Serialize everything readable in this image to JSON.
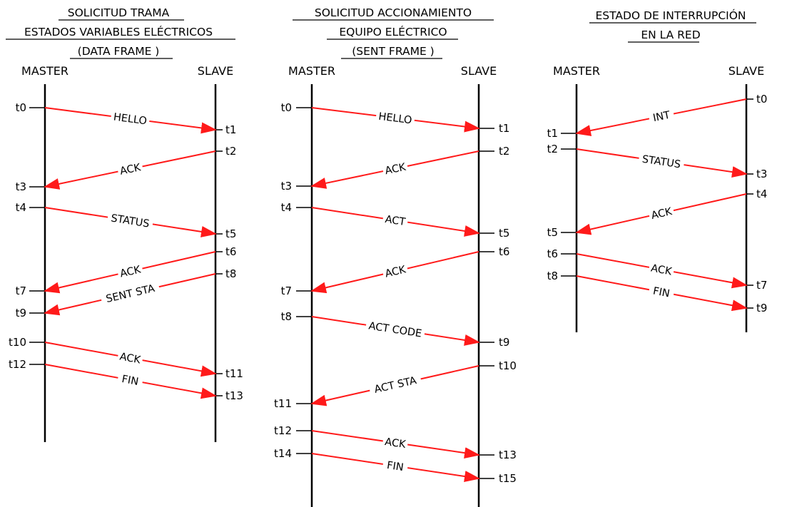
{
  "diagrams": [
    {
      "title_lines": [
        "SOLICITUD TRAMA",
        "ESTADOS VARIABLES ELÉCTRICOS",
        "(DATA FRAME )"
      ],
      "master_label": "MASTER",
      "slave_label": "SLAVE",
      "messages": [
        {
          "label": "HELLO",
          "from_time": "t0",
          "to_time": "t1",
          "direction": "master-to-slave"
        },
        {
          "label": "ACK",
          "from_time": "t2",
          "to_time": "t3",
          "direction": "slave-to-master"
        },
        {
          "label": "STATUS",
          "from_time": "t4",
          "to_time": "t5",
          "direction": "master-to-slave"
        },
        {
          "label": "ACK",
          "from_time": "t6",
          "to_time": "t7",
          "direction": "slave-to-master"
        },
        {
          "label": "SENT STA",
          "from_time": "t8",
          "to_time": "t9",
          "direction": "slave-to-master"
        },
        {
          "label": "ACK",
          "from_time": "t10",
          "to_time": "t11",
          "direction": "master-to-slave"
        },
        {
          "label": "FIN",
          "from_time": "t12",
          "to_time": "t13",
          "direction": "master-to-slave"
        }
      ]
    },
    {
      "title_lines": [
        "SOLICITUD ACCIONAMIENTO",
        "EQUIPO ELÉCTRICO",
        "(SENT FRAME )"
      ],
      "master_label": "MASTER",
      "slave_label": "SLAVE",
      "messages": [
        {
          "label": "HELLO",
          "from_time": "t0",
          "to_time": "t1",
          "direction": "master-to-slave"
        },
        {
          "label": "ACK",
          "from_time": "t2",
          "to_time": "t3",
          "direction": "slave-to-master"
        },
        {
          "label": "ACT",
          "from_time": "t4",
          "to_time": "t5",
          "direction": "master-to-slave"
        },
        {
          "label": "ACK",
          "from_time": "t6",
          "to_time": "t7",
          "direction": "slave-to-master"
        },
        {
          "label": "ACT CODE",
          "from_time": "t8",
          "to_time": "t9",
          "direction": "master-to-slave"
        },
        {
          "label": "ACT STA",
          "from_time": "t10",
          "to_time": "t11",
          "direction": "slave-to-master"
        },
        {
          "label": "ACK",
          "from_time": "t12",
          "to_time": "t13",
          "direction": "master-to-slave"
        },
        {
          "label": "FIN",
          "from_time": "t14",
          "to_time": "t15",
          "direction": "master-to-slave"
        }
      ]
    },
    {
      "title_lines": [
        "ESTADO DE INTERRUPCIÓN",
        "EN LA RED"
      ],
      "master_label": "MASTER",
      "slave_label": "SLAVE",
      "messages": [
        {
          "label": "INT",
          "from_time": "t0",
          "to_time": "t1",
          "direction": "slave-to-master"
        },
        {
          "label": "STATUS",
          "from_time": "t2",
          "to_time": "t3",
          "direction": "master-to-slave"
        },
        {
          "label": "ACK",
          "from_time": "t4",
          "to_time": "t5",
          "direction": "slave-to-master"
        },
        {
          "label": "ACK",
          "from_time": "t6",
          "to_time": "t7",
          "direction": "master-to-slave"
        },
        {
          "label": "FIN",
          "from_time": "t8",
          "to_time": "t9",
          "direction": "master-to-slave"
        }
      ]
    }
  ],
  "colors": {
    "arrow": "#ff1a1a",
    "lifeline": "#000000",
    "text": "#000000"
  }
}
